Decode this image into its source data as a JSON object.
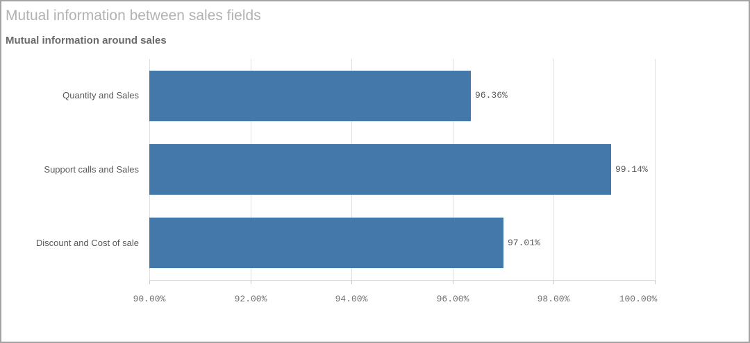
{
  "header": {
    "title": "Mutual information between sales fields",
    "subtitle": "Mutual information around sales"
  },
  "chart_data": {
    "type": "bar",
    "orientation": "horizontal",
    "title": "Mutual information around sales",
    "categories": [
      "Quantity and Sales",
      "Support calls and Sales",
      "Discount and Cost of sale"
    ],
    "values": [
      96.36,
      99.14,
      97.01
    ],
    "value_labels": [
      "96.36%",
      "99.14%",
      "97.01%"
    ],
    "x_tick_values": [
      90,
      92,
      94,
      96,
      98,
      100
    ],
    "x_tick_labels": [
      "90.00%",
      "92.00%",
      "94.00%",
      "96.00%",
      "98.00%",
      "100.00%"
    ],
    "xlim": [
      90,
      100
    ],
    "grid": true,
    "legend": "none",
    "bar_color": "#4477aa"
  },
  "colors": {
    "bar": "#4477aa",
    "title_text": "#b2b2b2",
    "subtitle_text": "#6a6a6a",
    "axis_text": "#707070",
    "label_text": "#595959",
    "gridline": "#e0e0e0",
    "widget_border": "#a3a3a3",
    "background": "#ffffff"
  }
}
